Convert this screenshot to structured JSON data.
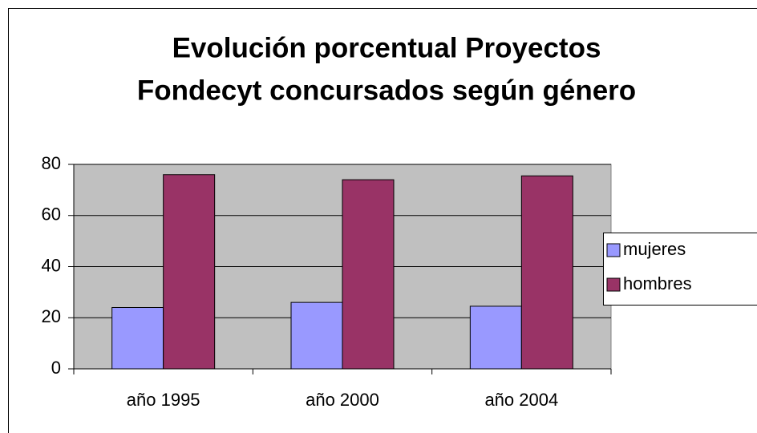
{
  "chart_data": {
    "type": "bar",
    "title": [
      "Evolución porcentual  Proyectos",
      "Fondecyt concursados según género"
    ],
    "categories": [
      "año 1995",
      "año 2000",
      "año 2004"
    ],
    "series": [
      {
        "name": "mujeres",
        "color": "#9999ff",
        "values": [
          24,
          26,
          24.5
        ]
      },
      {
        "name": "hombres",
        "color": "#993366",
        "values": [
          76,
          74,
          75.5
        ]
      }
    ],
    "ylim": [
      0,
      80
    ],
    "yticks": [
      0,
      20,
      40,
      60,
      80
    ],
    "grid": true,
    "legend": "right"
  }
}
